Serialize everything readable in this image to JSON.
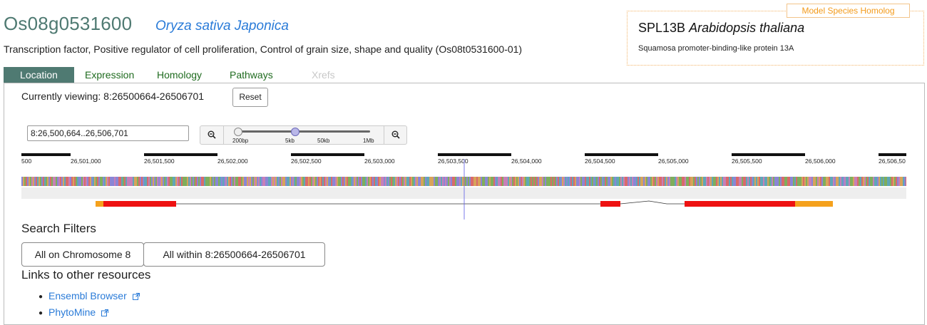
{
  "gene": {
    "id": "Os08g0531600",
    "species": "Oryza sativa Japonica",
    "description": "Transcription factor, Positive regulator of cell proliferation, Control of grain size, shape and quality (Os08t0531600-01)"
  },
  "homolog": {
    "badge": "Model Species Homolog",
    "symbol": "SPL13B",
    "species": "Arabidopsis thaliana",
    "description": "Squamosa promoter-binding-like protein 13A",
    "color": "#f39a1a"
  },
  "tabs": [
    {
      "label": "Location",
      "active": true
    },
    {
      "label": "Expression"
    },
    {
      "label": "Homology"
    },
    {
      "label": "Pathways"
    },
    {
      "label": "Xrefs",
      "disabled": true
    }
  ],
  "location": {
    "viewing_label": "Currently viewing:",
    "viewing_value": "8:26500664-26506701",
    "reset_label": "Reset",
    "region_input": "8:26,500,664..26,506,701",
    "zoom_in_icon": "zoom-in-icon",
    "zoom_out_icon": "zoom-out-icon",
    "slider_labels": [
      "200bp",
      "5kb",
      "50kb",
      "1Mb"
    ],
    "ruler_ticks": [
      "500",
      "26,501,000",
      "26,501,500",
      "26,502,000",
      "26,502,500",
      "26,503,000",
      "26,503,500",
      "26,504,000",
      "26,504,500",
      "26,505,000",
      "26,505,500",
      "26,506,000",
      "26,506,50"
    ],
    "exon_color": "#ee1111",
    "utr_color": "#f5a11c"
  },
  "filters": {
    "title": "Search Filters",
    "buttons": [
      "All on Chromosome 8",
      "All within 8:26500664-26506701"
    ]
  },
  "links": {
    "title": "Links to other resources",
    "items": [
      "Ensembl Browser",
      "PhytoMine"
    ]
  }
}
